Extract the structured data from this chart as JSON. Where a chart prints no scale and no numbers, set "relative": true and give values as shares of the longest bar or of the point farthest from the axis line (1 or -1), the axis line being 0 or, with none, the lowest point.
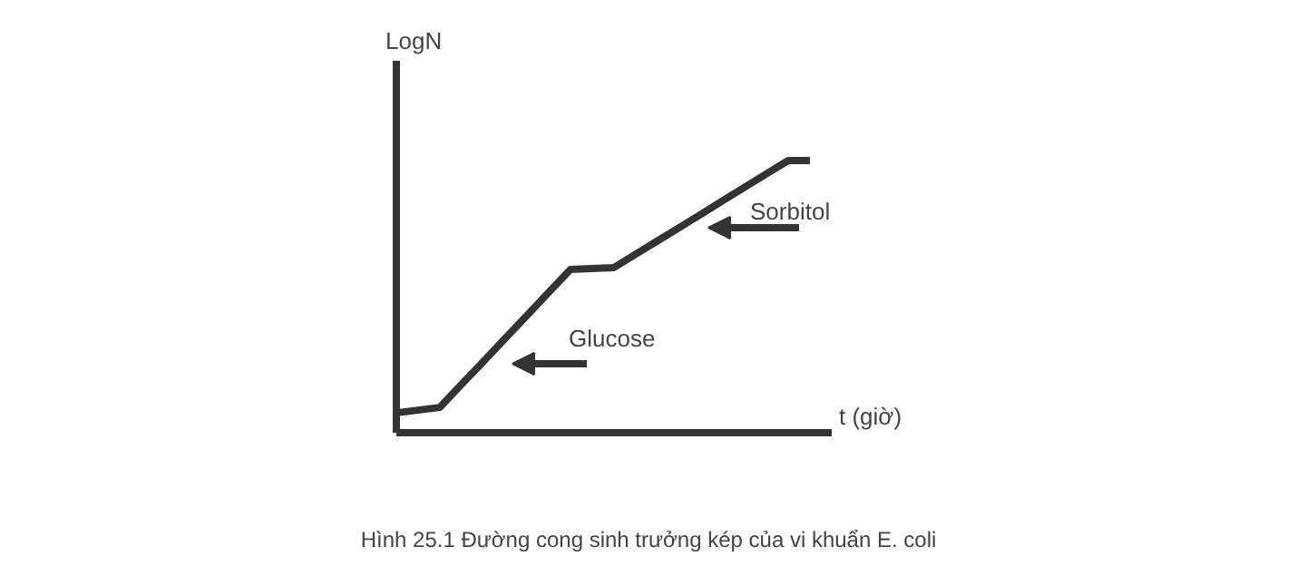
{
  "chart_data": {
    "type": "line",
    "relative": true,
    "ylabel": "LogN",
    "xlabel": "t (giờ)",
    "categories": [
      null,
      null,
      null,
      null,
      null,
      null,
      null,
      null,
      null,
      null,
      null,
      null,
      null,
      null,
      null,
      null,
      null,
      null,
      null,
      null
    ],
    "series": [
      {
        "color": "#333333",
        "values": [
          0.073,
          0.083,
          0.093,
          0.178,
          0.262,
          0.347,
          0.431,
          0.516,
          0.6,
          0.603,
          0.607,
          0.656,
          0.705,
          0.754,
          0.803,
          0.853,
          0.902,
          0.951,
          1,
          1
        ]
      }
    ],
    "annotations": [
      "Glucose",
      "Sorbitol",
      "Hình 25.1 Đường cong sinh trưởng kép của vi khuẩn E. coli"
    ]
  }
}
